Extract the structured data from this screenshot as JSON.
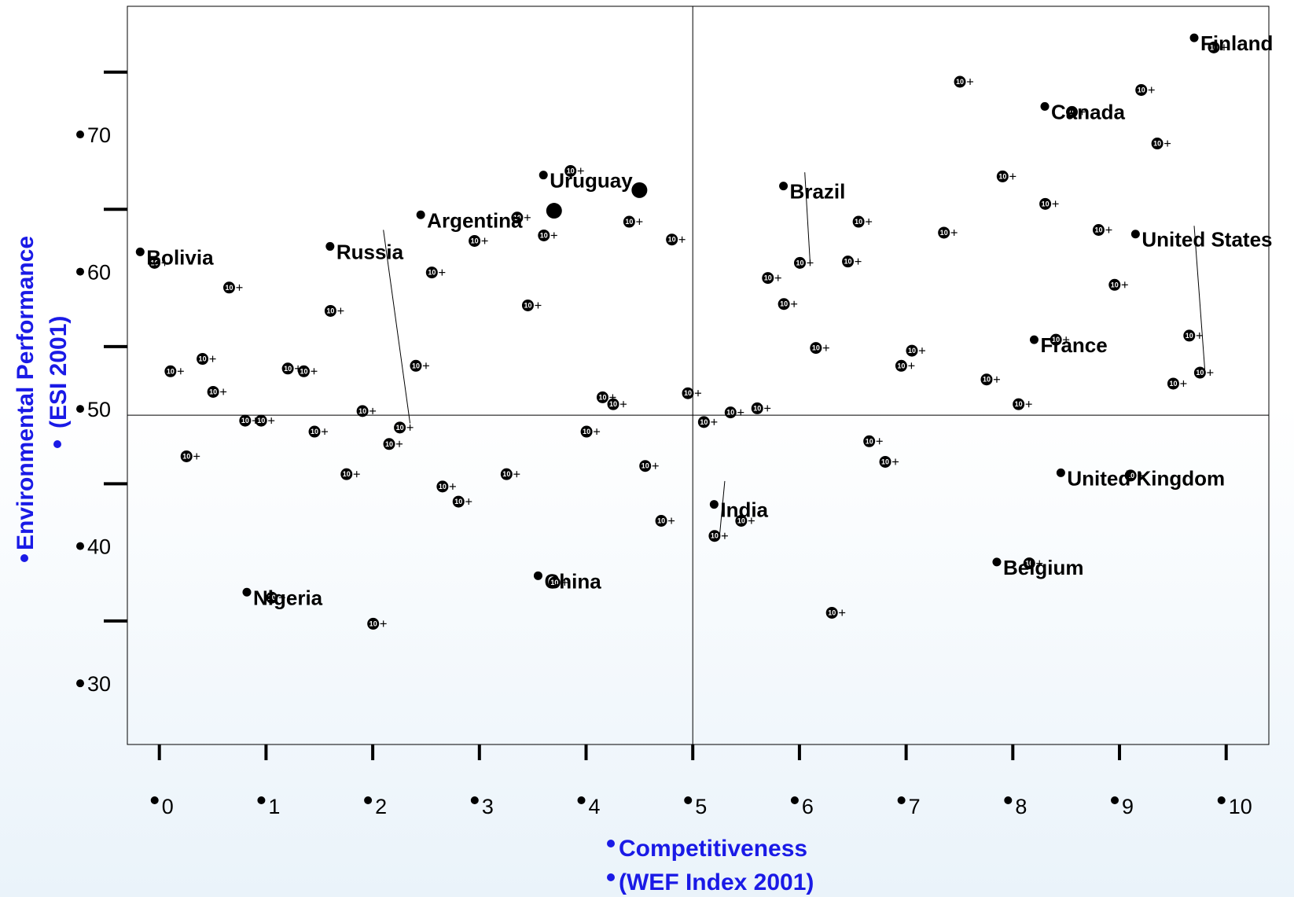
{
  "chart_data": {
    "type": "scatter",
    "title": "",
    "xlabel": [
      "Competitiveness",
      "(WEF Index 2001)"
    ],
    "ylabel": [
      "Environmental Performance",
      "(ESI 2001)"
    ],
    "xlim": [
      -0.3,
      10.4
    ],
    "ylim": [
      26,
      79.8
    ],
    "x_ticks": [
      0,
      1,
      2,
      3,
      4,
      5,
      6,
      7,
      8,
      9,
      10
    ],
    "y_ticks": [
      30,
      40,
      50,
      60,
      70
    ],
    "reference_lines": {
      "x": 5,
      "y": 50
    },
    "marker_label": "10",
    "colors": {
      "axis_title": "#1a1ae6",
      "point": "#000000",
      "frame": "#000000"
    },
    "labeled_points": [
      {
        "name": "Finland",
        "x": 9.7,
        "y": 77.5
      },
      {
        "name": "Canada",
        "x": 8.3,
        "y": 72.5
      },
      {
        "name": "Uruguay",
        "x": 3.6,
        "y": 67.5
      },
      {
        "name": "Brazil",
        "x": 5.85,
        "y": 66.7
      },
      {
        "name": "Argentina",
        "x": 2.45,
        "y": 64.6
      },
      {
        "name": "United States",
        "x": 9.15,
        "y": 63.2
      },
      {
        "name": "Bolivia",
        "x": -0.18,
        "y": 61.9
      },
      {
        "name": "Russia",
        "x": 1.6,
        "y": 62.3
      },
      {
        "name": "France",
        "x": 8.2,
        "y": 55.5
      },
      {
        "name": "United Kingdom",
        "x": 8.45,
        "y": 45.8
      },
      {
        "name": "India",
        "x": 5.2,
        "y": 43.5
      },
      {
        "name": "Belgium",
        "x": 7.85,
        "y": 39.3
      },
      {
        "name": "China",
        "x": 3.55,
        "y": 38.3
      },
      {
        "name": "Nigeria",
        "x": 0.82,
        "y": 37.1
      }
    ],
    "highlight_points": [
      {
        "x": 3.7,
        "y": 64.9
      },
      {
        "x": 4.5,
        "y": 66.4
      }
    ],
    "connector_lines": [
      {
        "from": [
          2.1,
          63.5
        ],
        "to": [
          2.35,
          49.4
        ]
      },
      {
        "from": [
          6.05,
          67.7
        ],
        "to": [
          6.1,
          61.1
        ]
      },
      {
        "from": [
          5.3,
          45.2
        ],
        "to": [
          5.25,
          41.1
        ]
      },
      {
        "from": [
          9.7,
          63.8
        ],
        "to": [
          9.8,
          53.3
        ]
      }
    ],
    "points": [
      {
        "x": 0.05,
        "y": 61.1
      },
      {
        "x": 0.2,
        "y": 53.2
      },
      {
        "x": 0.35,
        "y": 47.0
      },
      {
        "x": 0.5,
        "y": 54.1
      },
      {
        "x": 0.6,
        "y": 51.7
      },
      {
        "x": 0.75,
        "y": 59.3
      },
      {
        "x": 0.9,
        "y": 49.6
      },
      {
        "x": 1.05,
        "y": 49.6
      },
      {
        "x": 1.3,
        "y": 53.4
      },
      {
        "x": 1.45,
        "y": 53.2
      },
      {
        "x": 1.15,
        "y": 36.7
      },
      {
        "x": 1.55,
        "y": 48.8
      },
      {
        "x": 1.7,
        "y": 57.6
      },
      {
        "x": 1.85,
        "y": 45.7
      },
      {
        "x": 2.0,
        "y": 50.3
      },
      {
        "x": 2.1,
        "y": 34.8
      },
      {
        "x": 2.25,
        "y": 47.9
      },
      {
        "x": 2.35,
        "y": 49.1
      },
      {
        "x": 2.5,
        "y": 53.6
      },
      {
        "x": 2.65,
        "y": 60.4
      },
      {
        "x": 2.75,
        "y": 44.8
      },
      {
        "x": 2.9,
        "y": 43.7
      },
      {
        "x": 3.05,
        "y": 62.7
      },
      {
        "x": 3.35,
        "y": 45.7
      },
      {
        "x": 3.55,
        "y": 58.0
      },
      {
        "x": 3.45,
        "y": 64.4
      },
      {
        "x": 3.7,
        "y": 63.1
      },
      {
        "x": 3.8,
        "y": 37.8
      },
      {
        "x": 3.95,
        "y": 67.8
      },
      {
        "x": 4.1,
        "y": 48.8
      },
      {
        "x": 4.25,
        "y": 51.3
      },
      {
        "x": 4.35,
        "y": 50.8
      },
      {
        "x": 4.5,
        "y": 64.1
      },
      {
        "x": 4.65,
        "y": 46.3
      },
      {
        "x": 4.8,
        "y": 42.3
      },
      {
        "x": 4.9,
        "y": 62.8
      },
      {
        "x": 5.05,
        "y": 51.6
      },
      {
        "x": 5.2,
        "y": 49.5
      },
      {
        "x": 5.3,
        "y": 41.2
      },
      {
        "x": 5.45,
        "y": 50.2
      },
      {
        "x": 5.55,
        "y": 42.3
      },
      {
        "x": 5.7,
        "y": 50.5
      },
      {
        "x": 5.8,
        "y": 60.0
      },
      {
        "x": 5.95,
        "y": 58.1
      },
      {
        "x": 6.1,
        "y": 61.1
      },
      {
        "x": 6.25,
        "y": 54.9
      },
      {
        "x": 6.4,
        "y": 35.6
      },
      {
        "x": 6.55,
        "y": 61.2
      },
      {
        "x": 6.65,
        "y": 64.1
      },
      {
        "x": 6.75,
        "y": 48.1
      },
      {
        "x": 6.9,
        "y": 46.6
      },
      {
        "x": 7.05,
        "y": 53.6
      },
      {
        "x": 7.15,
        "y": 54.7
      },
      {
        "x": 7.45,
        "y": 63.3
      },
      {
        "x": 7.6,
        "y": 74.3
      },
      {
        "x": 7.85,
        "y": 52.6
      },
      {
        "x": 8.0,
        "y": 67.4
      },
      {
        "x": 8.15,
        "y": 50.8
      },
      {
        "x": 8.25,
        "y": 39.2
      },
      {
        "x": 8.4,
        "y": 65.4
      },
      {
        "x": 8.5,
        "y": 55.5
      },
      {
        "x": 8.65,
        "y": 72.1
      },
      {
        "x": 8.9,
        "y": 63.5
      },
      {
        "x": 9.05,
        "y": 59.5
      },
      {
        "x": 9.2,
        "y": 45.6
      },
      {
        "x": 9.3,
        "y": 73.7
      },
      {
        "x": 9.45,
        "y": 69.8
      },
      {
        "x": 9.6,
        "y": 52.3
      },
      {
        "x": 9.75,
        "y": 55.8
      },
      {
        "x": 9.85,
        "y": 53.1
      },
      {
        "x": 9.98,
        "y": 76.8
      }
    ]
  }
}
